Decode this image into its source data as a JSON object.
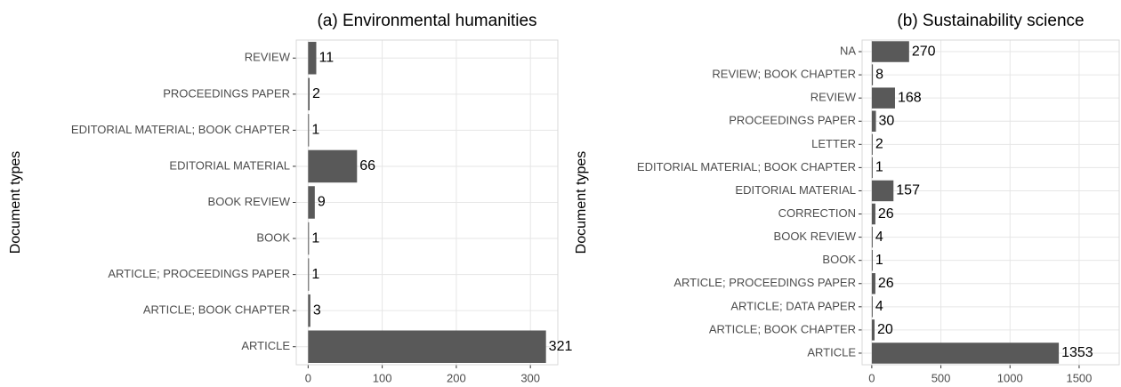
{
  "chart_data": [
    {
      "type": "bar",
      "orientation": "horizontal",
      "title": "(a) Environmental humanities",
      "y_label": "Document types",
      "categories": [
        "ARTICLE",
        "ARTICLE; BOOK CHAPTER",
        "ARTICLE; PROCEEDINGS PAPER",
        "BOOK",
        "BOOK REVIEW",
        "EDITORIAL MATERIAL",
        "EDITORIAL MATERIAL; BOOK CHAPTER",
        "PROCEEDINGS PAPER",
        "REVIEW"
      ],
      "values": [
        321,
        3,
        1,
        1,
        9,
        66,
        1,
        2,
        11
      ],
      "color": "#595959",
      "xlim": [
        -16,
        337
      ],
      "xticks": [
        0,
        100,
        200,
        300
      ],
      "grid": true
    },
    {
      "type": "bar",
      "orientation": "horizontal",
      "title": "(b) Sustainability science",
      "y_label": "Document types",
      "categories": [
        "ARTICLE",
        "ARTICLE; BOOK CHAPTER",
        "ARTICLE; DATA PAPER",
        "ARTICLE; PROCEEDINGS PAPER",
        "BOOK",
        "BOOK REVIEW",
        "CORRECTION",
        "EDITORIAL MATERIAL",
        "EDITORIAL MATERIAL; BOOK CHAPTER",
        "LETTER",
        "PROCEEDINGS PAPER",
        "REVIEW",
        "REVIEW; BOOK CHAPTER",
        "NA"
      ],
      "values": [
        1353,
        20,
        4,
        26,
        1,
        4,
        26,
        157,
        1,
        2,
        30,
        168,
        8,
        270
      ],
      "color": "#595959",
      "xlim": [
        -70,
        1790
      ],
      "xticks": [
        0,
        500,
        1000,
        1500
      ],
      "grid": true
    }
  ]
}
